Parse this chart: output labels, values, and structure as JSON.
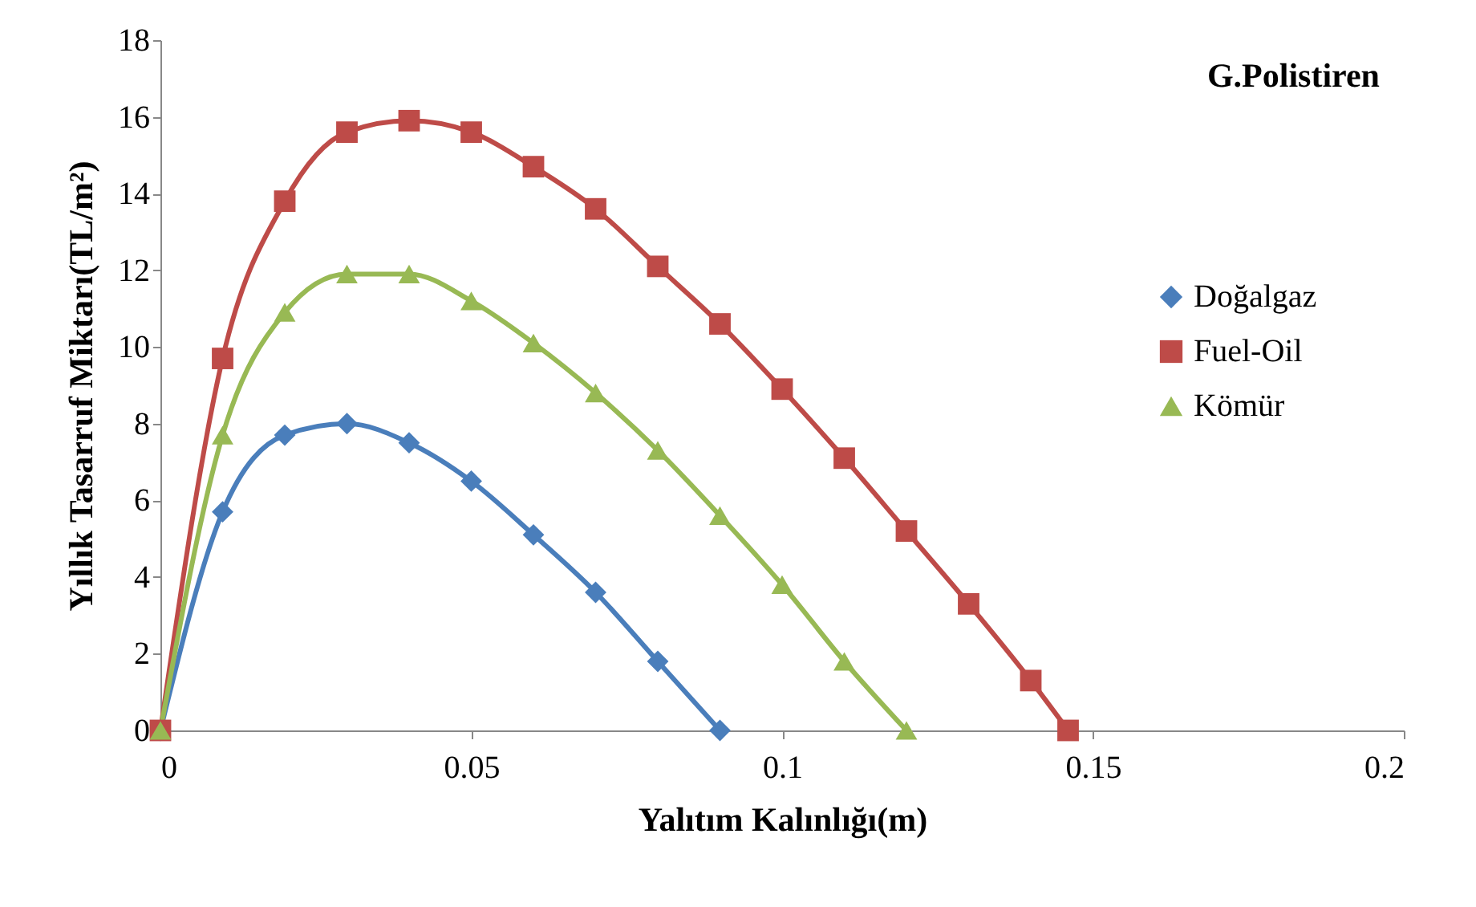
{
  "chart_data": {
    "type": "line",
    "title": "G.Polistiren",
    "xlabel": "Yalıtım Kalınlığı(m)",
    "ylabel": "Yıllık Tasarruf Miktarı(TL/m²)",
    "xlim": [
      0,
      0.2
    ],
    "xticks": [
      0,
      0.05,
      0.1,
      0.15,
      0.2
    ],
    "ylim": [
      0,
      18
    ],
    "yticks": [
      0,
      2,
      4,
      6,
      8,
      10,
      12,
      14,
      16,
      18
    ],
    "grid": false,
    "legend": "right",
    "series": [
      {
        "name": "Doğalgaz",
        "color": "#4a7ebb",
        "marker": "diamond",
        "x": [
          0,
          0.01,
          0.02,
          0.03,
          0.04,
          0.05,
          0.06,
          0.07,
          0.08,
          0.09
        ],
        "values": [
          0,
          5.7,
          7.7,
          8.0,
          7.5,
          6.5,
          5.1,
          3.6,
          1.8,
          0
        ]
      },
      {
        "name": "Fuel-Oil",
        "color": "#be4b48",
        "marker": "square",
        "x": [
          0,
          0.01,
          0.02,
          0.03,
          0.04,
          0.05,
          0.06,
          0.07,
          0.08,
          0.09,
          0.1,
          0.11,
          0.12,
          0.13,
          0.14,
          0.146
        ],
        "values": [
          0,
          9.7,
          13.8,
          15.6,
          15.9,
          15.6,
          14.7,
          13.6,
          12.1,
          10.6,
          8.9,
          7.1,
          5.2,
          3.3,
          1.3,
          0
        ]
      },
      {
        "name": "Kömür",
        "color": "#98b954",
        "marker": "triangle",
        "x": [
          0,
          0.01,
          0.02,
          0.03,
          0.04,
          0.05,
          0.06,
          0.07,
          0.08,
          0.09,
          0.1,
          0.11,
          0.12
        ],
        "values": [
          0,
          7.7,
          10.9,
          11.9,
          11.9,
          11.2,
          10.1,
          8.8,
          7.3,
          5.6,
          3.8,
          1.8,
          0
        ]
      }
    ]
  }
}
